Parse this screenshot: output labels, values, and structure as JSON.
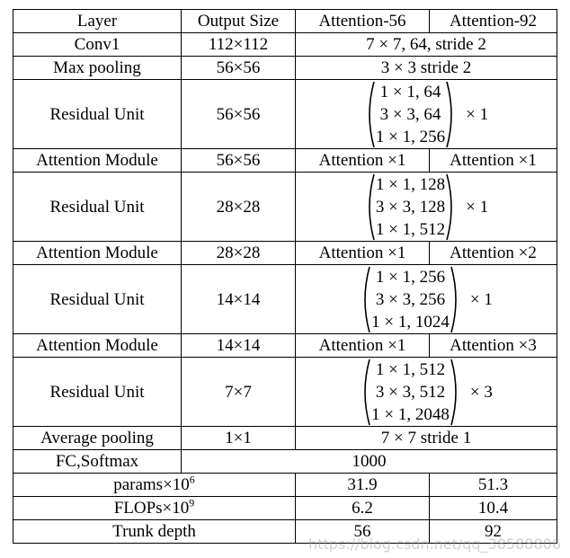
{
  "header": {
    "layer": "Layer",
    "output_size": "Output Size",
    "attention56": "Attention-56",
    "attention92": "Attention-92"
  },
  "rows": {
    "conv1": {
      "layer": "Conv1",
      "output": "112×112",
      "config": "7 × 7, 64, stride 2"
    },
    "maxpool": {
      "layer": "Max pooling",
      "output": "56×56",
      "config": "3 × 3 stride 2"
    },
    "res1": {
      "layer": "Residual Unit",
      "output": "56×56",
      "m1": "1 × 1, 64",
      "m2": "3 × 3, 64",
      "m3": "1 × 1, 256",
      "mult": "× 1"
    },
    "att1": {
      "layer": "Attention Module",
      "output": "56×56",
      "a56": "Attention ×1",
      "a92": "Attention ×1"
    },
    "res2": {
      "layer": "Residual Unit",
      "output": "28×28",
      "m1": "1 × 1, 128",
      "m2": "3 × 3, 128",
      "m3": "1 × 1, 512",
      "mult": "× 1"
    },
    "att2": {
      "layer": "Attention Module",
      "output": "28×28",
      "a56": "Attention ×1",
      "a92": "Attention ×2"
    },
    "res3": {
      "layer": "Residual Unit",
      "output": "14×14",
      "m1": "1 × 1, 256",
      "m2": "3 × 3, 256",
      "m3": "1 × 1, 1024",
      "mult": "× 1"
    },
    "att3": {
      "layer": "Attention Module",
      "output": "14×14",
      "a56": "Attention ×1",
      "a92": "Attention ×3"
    },
    "res4": {
      "layer": "Residual Unit",
      "output": "7×7",
      "m1": "1 × 1, 512",
      "m2": "3 × 3, 512",
      "m3": "1 × 1, 2048",
      "mult": "× 3"
    },
    "avgpool": {
      "layer": "Average pooling",
      "output": "1×1",
      "config": "7 × 7 stride 1"
    },
    "fc": {
      "layer": "FC,Softmax",
      "config": "1000"
    },
    "params": {
      "label": "params×10",
      "exp": "6",
      "a56": "31.9",
      "a92": "51.3"
    },
    "flops": {
      "label": "FLOPs×10",
      "exp": "9",
      "a56": "6.2",
      "a92": "10.4"
    },
    "depth": {
      "label": "Trunk depth",
      "a56": "56",
      "a92": "92"
    }
  },
  "watermark": "https://blog.csdn.net/qq_38588806"
}
